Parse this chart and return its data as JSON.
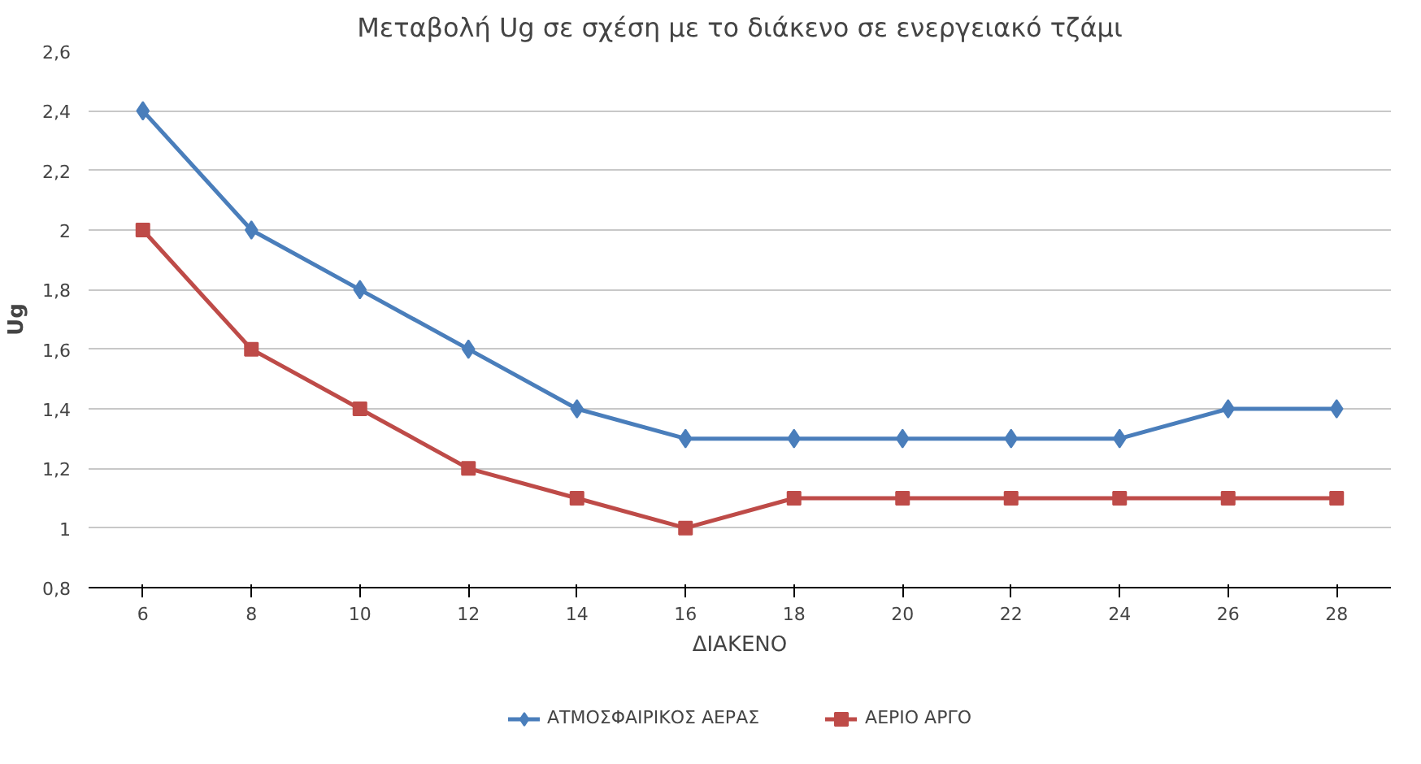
{
  "chart_data": {
    "type": "line",
    "title": "Μεταβολή Ug σε σχέση με το διάκενο σε ενεργειακό τζάμι",
    "xlabel": "ΔΙΑΚΕΝΟ",
    "ylabel": "Ug",
    "categories": [
      "6",
      "8",
      "10",
      "12",
      "14",
      "16",
      "18",
      "20",
      "22",
      "24",
      "26",
      "28"
    ],
    "series": [
      {
        "name": "ΑΤΜΟΣΦΑΙΡΙΚΟΣ ΑΕΡΑΣ",
        "color": "#4a7ebb",
        "marker": "diamond",
        "values": [
          2.4,
          2.0,
          1.8,
          1.6,
          1.4,
          1.3,
          1.3,
          1.3,
          1.3,
          1.3,
          1.4,
          1.4
        ]
      },
      {
        "name": "ΑΕΡΙΟ ΑΡΓΟ",
        "color": "#be4b48",
        "marker": "square",
        "values": [
          2.0,
          1.6,
          1.4,
          1.2,
          1.1,
          1.0,
          1.1,
          1.1,
          1.1,
          1.1,
          1.1,
          1.1
        ]
      }
    ],
    "ylim": [
      0.8,
      2.6
    ],
    "yticks": [
      {
        "value": 0.8,
        "label": "0,8"
      },
      {
        "value": 1,
        "label": "1"
      },
      {
        "value": 1.2,
        "label": "1,2"
      },
      {
        "value": 1.4,
        "label": "1,4"
      },
      {
        "value": 1.6,
        "label": "1,6"
      },
      {
        "value": 1.8,
        "label": "1,8"
      },
      {
        "value": 2,
        "label": "2"
      },
      {
        "value": 2.2,
        "label": "2,2"
      },
      {
        "value": 2.4,
        "label": "2,4"
      },
      {
        "value": 2.6,
        "label": "2,6"
      }
    ],
    "grid": "y",
    "legend": "bottom",
    "line_style": "solid"
  }
}
